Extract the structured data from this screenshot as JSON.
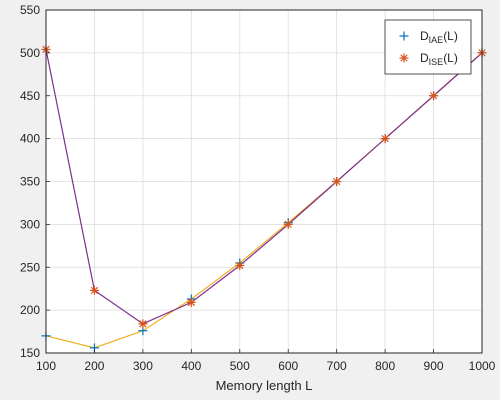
{
  "chart_data": {
    "type": "line",
    "title": "",
    "xlabel": "Memory length L",
    "ylabel": "",
    "xlim": [
      100,
      1000
    ],
    "ylim": [
      150,
      550
    ],
    "grid": true,
    "legend_placement": "top-right",
    "x": [
      100,
      200,
      300,
      400,
      500,
      600,
      700,
      800,
      900,
      1000
    ],
    "x_ticks": [
      "100",
      "200",
      "300",
      "400",
      "500",
      "600",
      "700",
      "800",
      "900",
      "1000"
    ],
    "y_ticks": [
      "150",
      "200",
      "250",
      "300",
      "350",
      "400",
      "450",
      "500",
      "550"
    ],
    "series": [
      {
        "name": "D_IAE(L)",
        "legend_main": "D",
        "legend_sub": "IAE",
        "legend_tail": "(L)",
        "marker": "+",
        "marker_color": "#0072bd",
        "line_color": "#edb120",
        "values": [
          170,
          156,
          176,
          213,
          255,
          302,
          350,
          400,
          450,
          500
        ]
      },
      {
        "name": "D_ISE(L)",
        "legend_main": "D",
        "legend_sub": "ISE",
        "legend_tail": "(L)",
        "marker": "*",
        "marker_color": "#d95319",
        "line_color": "#7e2f8e",
        "values": [
          504,
          223,
          184,
          209,
          252,
          300,
          350,
          400,
          450,
          500
        ]
      }
    ]
  }
}
